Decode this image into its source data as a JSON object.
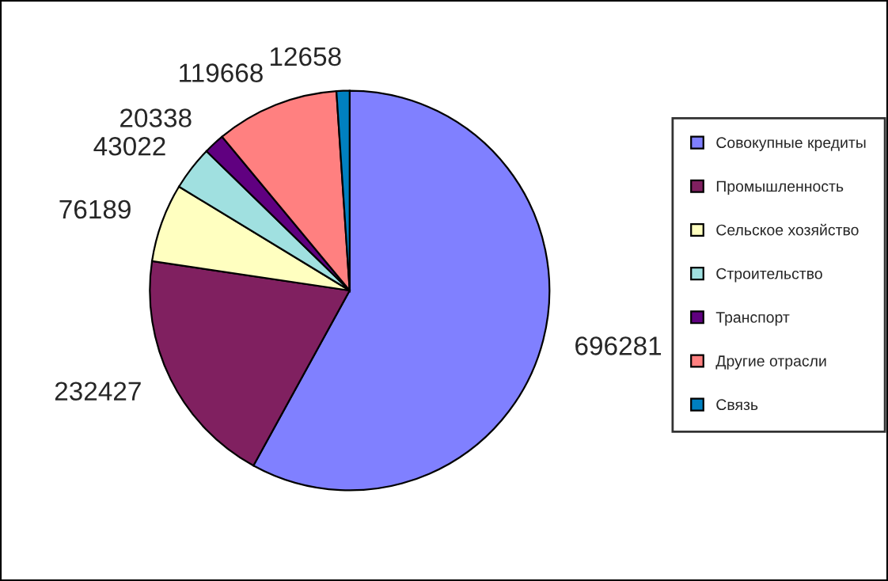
{
  "chart_data": {
    "type": "pie",
    "categories": [
      "Совокупные кредиты",
      "Промышленность",
      "Сельское хозяйство",
      "Строительство",
      "Транспорт",
      "Другие отрасли",
      "Связь"
    ],
    "values": [
      696281,
      232427,
      76189,
      43022,
      20338,
      119668,
      12658
    ],
    "colors": [
      "#8080ff",
      "#802060",
      "#ffffc0",
      "#a0e0e0",
      "#600080",
      "#ff8080",
      "#0080c0"
    ],
    "data_labels": true,
    "legend": "right"
  }
}
